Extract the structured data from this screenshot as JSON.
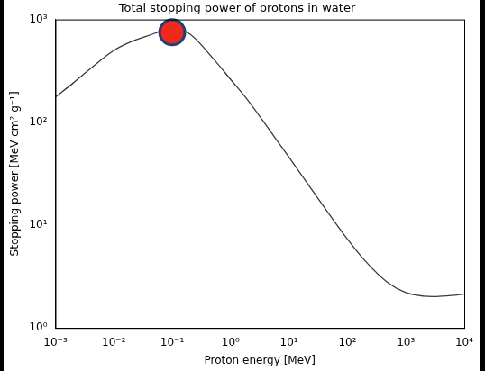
{
  "chart_data": {
    "type": "line",
    "title": "Total stopping power of protons in water",
    "x_label": "Proton energy [MeV]",
    "y_label": "Stopping power [MeV cm² g⁻¹]",
    "log": true,
    "grid": false,
    "xlim": [
      0.001,
      10000
    ],
    "ylim": [
      1,
      1000
    ],
    "xticks": [
      {
        "value": 0.001,
        "label": "10⁻³"
      },
      {
        "value": 0.01,
        "label": "10⁻²"
      },
      {
        "value": 0.1,
        "label": "10⁻¹"
      },
      {
        "value": 1,
        "label": "10⁰"
      },
      {
        "value": 10,
        "label": "10¹"
      },
      {
        "value": 100,
        "label": "10²"
      },
      {
        "value": 1000,
        "label": "10³"
      },
      {
        "value": 10000,
        "label": "10⁴"
      }
    ],
    "yticks": [
      {
        "value": 1,
        "label": "10⁰"
      },
      {
        "value": 10,
        "label": "10¹"
      },
      {
        "value": 100,
        "label": "10²"
      },
      {
        "value": 1000,
        "label": "10³"
      }
    ],
    "series": [
      {
        "type": "line",
        "color": "#3a3a3a",
        "marker": "none",
        "line_style": "solid",
        "x": [
          0.001,
          0.002,
          0.005,
          0.01,
          0.02,
          0.05,
          0.08,
          0.1,
          0.2,
          0.5,
          1,
          2,
          5,
          10,
          20,
          50,
          100,
          200,
          500,
          1000,
          2000,
          3000,
          5000,
          10000
        ],
        "values": [
          176,
          240,
          370,
          500,
          610,
          733,
          810,
          817,
          722,
          418,
          261,
          162,
          79,
          45.7,
          26.1,
          12.5,
          7.3,
          4.5,
          2.74,
          2.21,
          2.04,
          2.02,
          2.05,
          2.13
        ]
      },
      {
        "type": "scatter",
        "color": "#ee2a1b",
        "marker": "circle",
        "x": [
          0.1
        ],
        "values": [
          750
        ]
      }
    ]
  }
}
